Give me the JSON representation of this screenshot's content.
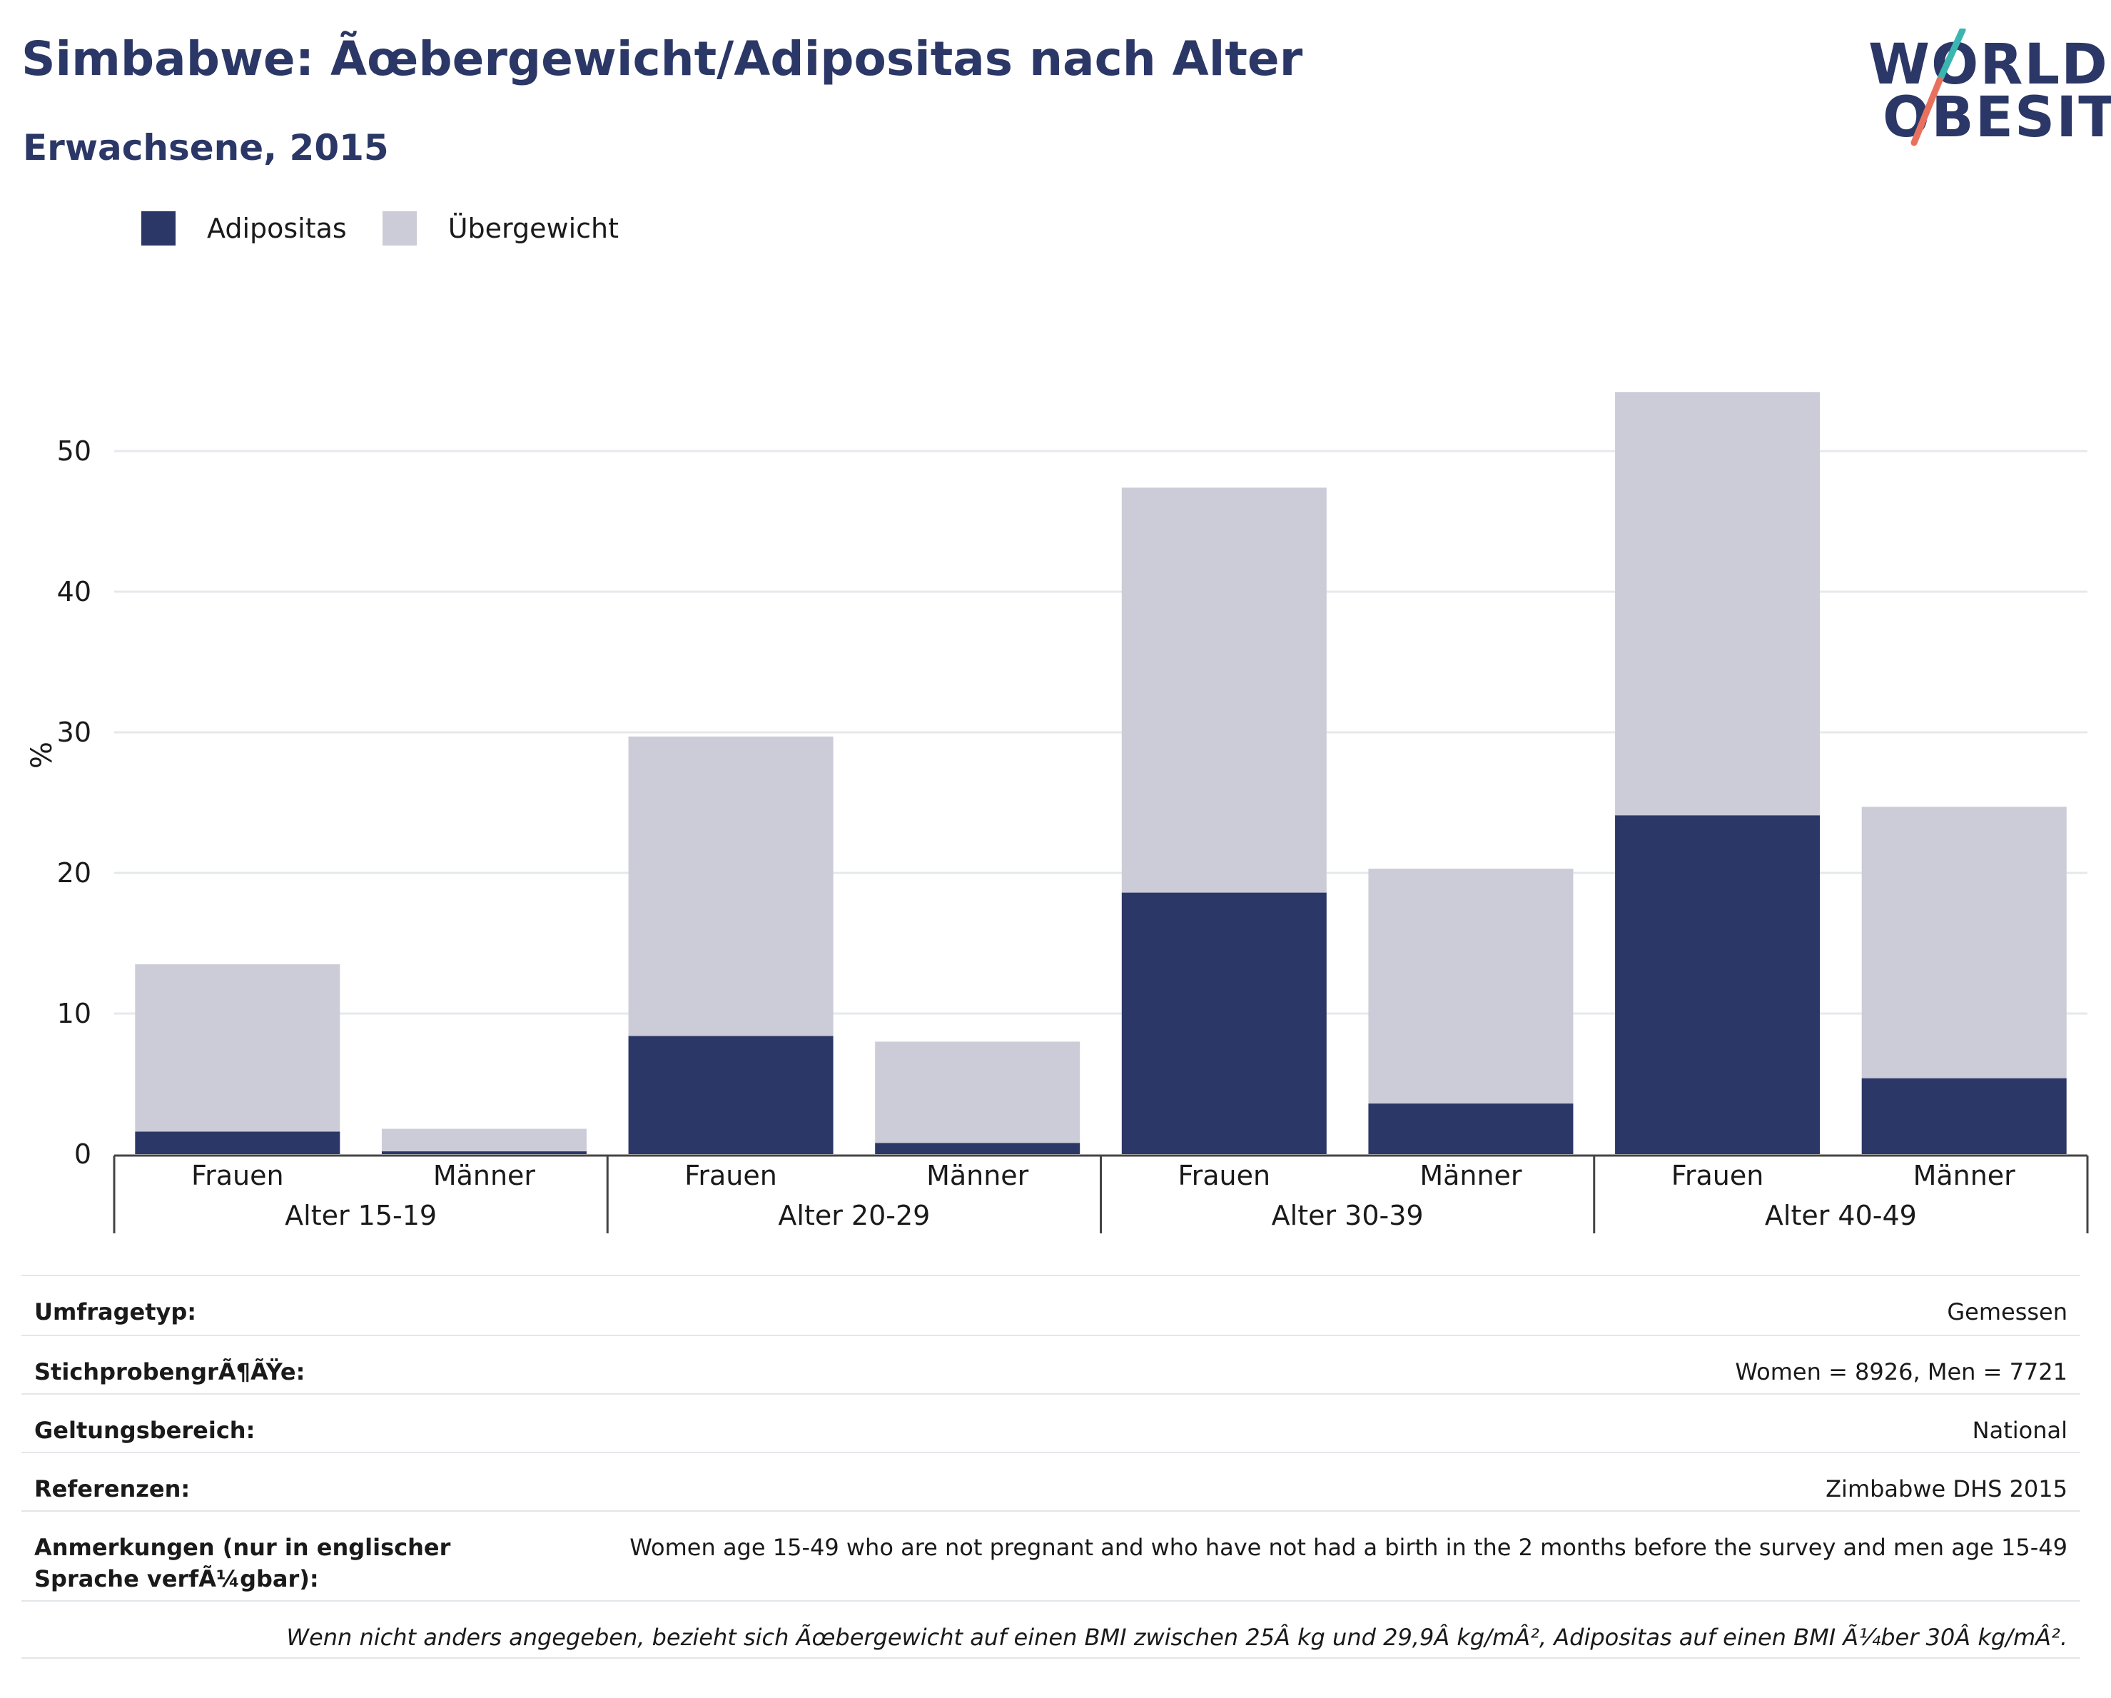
{
  "header": {
    "title": "Simbabwe: Ãœbergewicht/Adipositas nach Alter",
    "subtitle": "Erwachsene, 2015"
  },
  "logo": {
    "line1": "WORLD",
    "line2": "OBESITY",
    "colors": {
      "navy": "#2b3766",
      "teal": "#3ab5b0",
      "coral": "#e8715e"
    }
  },
  "legend": [
    {
      "label": "Adipositas",
      "color": "#2b3766"
    },
    {
      "label": "Übergewicht",
      "color": "#cbccd7"
    }
  ],
  "chart_data": {
    "type": "bar",
    "stacked": true,
    "ylabel": "%",
    "ylim": [
      0,
      57
    ],
    "yticks": [
      0,
      10,
      20,
      30,
      40,
      50
    ],
    "grid": true,
    "legend_position": "top-left",
    "groups": [
      "Alter 15-19",
      "Alter 20-29",
      "Alter 30-39",
      "Alter 40-49"
    ],
    "subcategories": [
      "Frauen",
      "Männer"
    ],
    "categories": [
      "Alter 15-19 Frauen",
      "Alter 15-19 Männer",
      "Alter 20-29 Frauen",
      "Alter 20-29 Männer",
      "Alter 30-39 Frauen",
      "Alter 30-39 Männer",
      "Alter 40-49 Frauen",
      "Alter 40-49 Männer"
    ],
    "series": [
      {
        "name": "Adipositas",
        "color": "#2b3766",
        "values": [
          1.6,
          0.2,
          8.4,
          0.8,
          18.6,
          3.6,
          24.1,
          5.4
        ]
      },
      {
        "name": "Übergewicht",
        "color": "#cbccd7",
        "values": [
          11.9,
          1.6,
          21.3,
          7.2,
          28.8,
          16.7,
          30.1,
          19.3
        ]
      }
    ]
  },
  "info": {
    "rows": [
      {
        "label": "Umfragetyp:",
        "value": "Gemessen"
      },
      {
        "label": "StichprobengrÃ¶ÃŸe:",
        "value": "Women = 8926, Men = 7721"
      },
      {
        "label": "Geltungsbereich:",
        "value": "National"
      },
      {
        "label": "Referenzen:",
        "value": "Zimbabwe DHS 2015"
      },
      {
        "label": "Anmerkungen (nur in englischer Sprache verfÃ¼gbar):",
        "value": "Women age 15-49 who are not pregnant and who have not had a birth in the 2 months before the survey and men age 15-49"
      }
    ],
    "footnote": "Wenn nicht anders angegeben, bezieht sich Ãœbergewicht auf einen BMI zwischen 25Â kg und 29,9Â kg/mÂ², Adipositas auf einen BMI Ã¼ber 30Â kg/mÂ²."
  }
}
